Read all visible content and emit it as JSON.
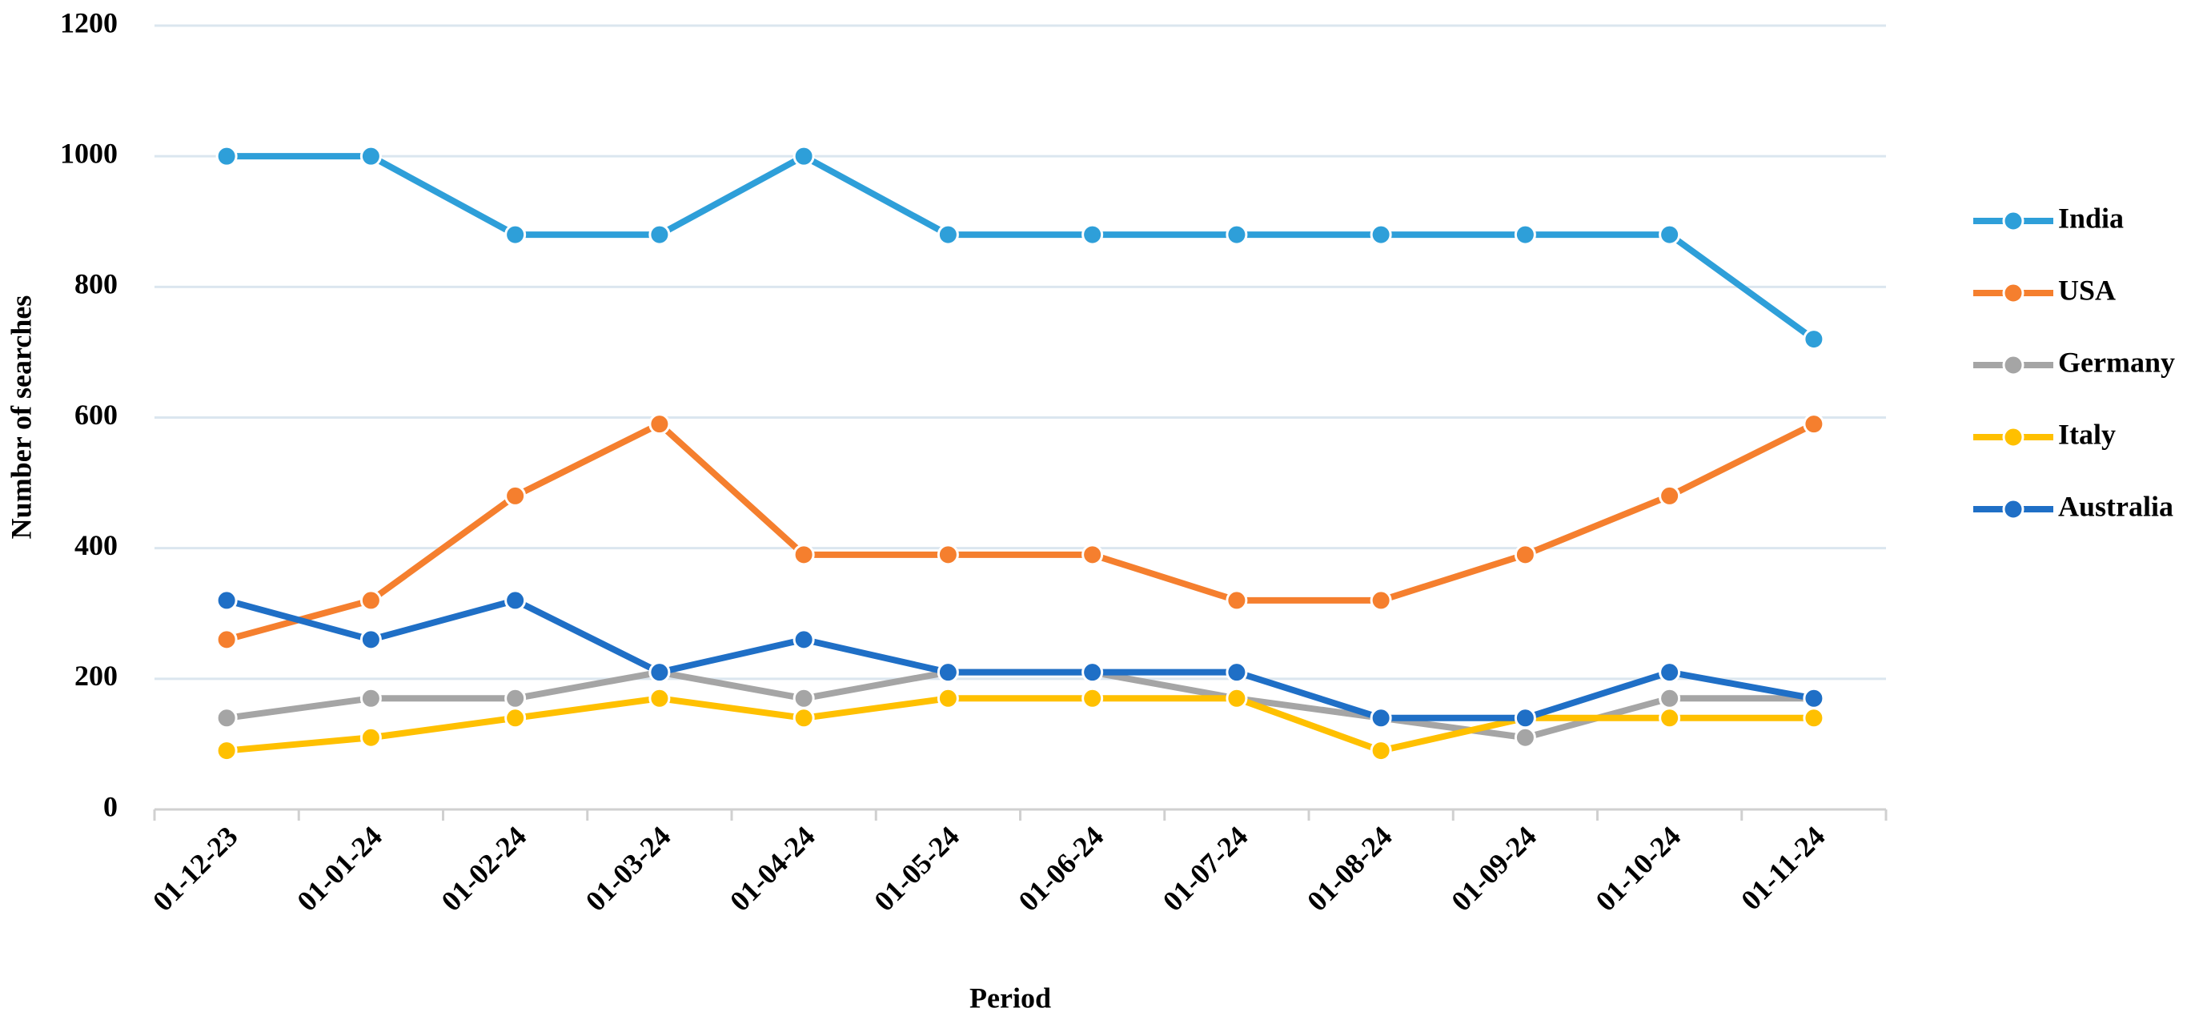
{
  "chart_data": {
    "type": "line",
    "x_label": "Period",
    "y_label": "Number of searches",
    "categories": [
      "01-12-23",
      "01-01-24",
      "01-02-24",
      "01-03-24",
      "01-04-24",
      "01-05-24",
      "01-06-24",
      "01-07-24",
      "01-08-24",
      "01-09-24",
      "01-10-24",
      "01-11-24"
    ],
    "series": [
      {
        "name": "India",
        "color": "#2e9fd9",
        "values": [
          1000,
          1000,
          880,
          880,
          1000,
          880,
          880,
          880,
          880,
          880,
          880,
          720
        ]
      },
      {
        "name": "USA",
        "color": "#f57f2e",
        "values": [
          260,
          320,
          480,
          590,
          390,
          390,
          390,
          320,
          320,
          390,
          480,
          590
        ]
      },
      {
        "name": "Germany",
        "color": "#a5a5a5",
        "values": [
          140,
          170,
          170,
          210,
          170,
          210,
          210,
          170,
          140,
          110,
          170,
          170
        ]
      },
      {
        "name": "Italy",
        "color": "#ffc000",
        "values": [
          90,
          110,
          140,
          170,
          140,
          170,
          170,
          170,
          90,
          140,
          140,
          140
        ]
      },
      {
        "name": "Australia",
        "color": "#1f6fc6",
        "values": [
          320,
          260,
          320,
          210,
          260,
          210,
          210,
          210,
          140,
          140,
          210,
          170
        ]
      }
    ],
    "ylim": [
      0,
      1200
    ],
    "yticks": [
      0,
      200,
      400,
      600,
      800,
      1000,
      1200
    ],
    "grid": true,
    "legend": "right"
  }
}
